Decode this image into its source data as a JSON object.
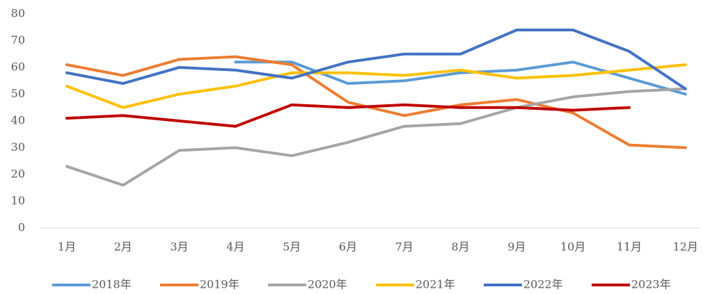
{
  "chart_data": {
    "type": "line",
    "categories": [
      "1月",
      "2月",
      "3月",
      "4月",
      "5月",
      "6月",
      "7月",
      "8月",
      "9月",
      "10月",
      "11月",
      "12月"
    ],
    "series": [
      {
        "name": "2018年",
        "color": "#5b9bd5",
        "values": [
          null,
          null,
          null,
          62,
          62,
          54,
          55,
          58,
          59,
          62,
          56,
          50
        ]
      },
      {
        "name": "2019年",
        "color": "#ed7d31",
        "values": [
          61,
          57,
          63,
          64,
          61,
          47,
          42,
          46,
          48,
          43,
          31,
          30
        ]
      },
      {
        "name": "2020年",
        "color": "#a5a5a5",
        "values": [
          23,
          16,
          29,
          30,
          27,
          32,
          38,
          39,
          45,
          49,
          51,
          52
        ]
      },
      {
        "name": "2021年",
        "color": "#ffc000",
        "values": [
          53,
          45,
          50,
          53,
          58,
          58,
          57,
          59,
          56,
          57,
          59,
          61
        ]
      },
      {
        "name": "2022年",
        "color": "#4472c4",
        "values": [
          58,
          54,
          60,
          59,
          56,
          62,
          65,
          65,
          74,
          74,
          66,
          52
        ]
      },
      {
        "name": "2023年",
        "color": "#c00000",
        "values": [
          41,
          42,
          40,
          38,
          46,
          45,
          46,
          45,
          45,
          44,
          45,
          null
        ]
      }
    ],
    "ylim": [
      0,
      80
    ],
    "yticks": [
      0,
      10,
      20,
      30,
      40,
      50,
      60,
      70,
      80
    ],
    "grid": false,
    "legend": "bottom"
  }
}
